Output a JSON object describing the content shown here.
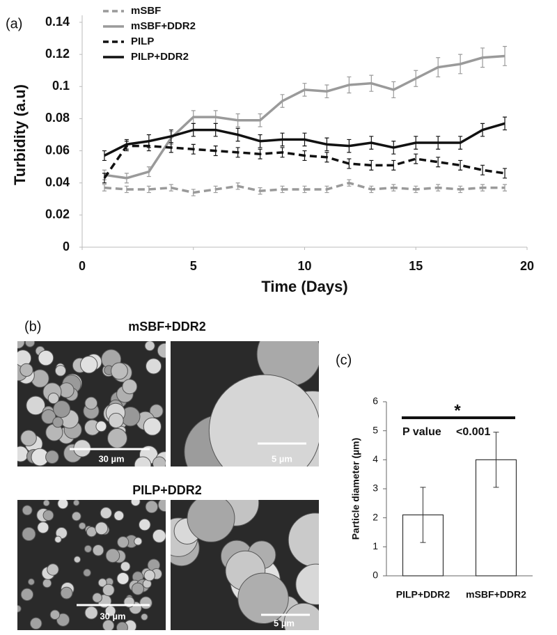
{
  "panel_labels": [
    "(a)",
    "(b)",
    "(c)"
  ],
  "micrographs": {
    "groups": [
      {
        "title": "mSBF+DDR2",
        "scale_bars": [
          "30 µm",
          "5 µm"
        ]
      },
      {
        "title": "PILP+DDR2",
        "scale_bars": [
          "30 µm",
          "5 µm"
        ]
      }
    ]
  },
  "chart_data": [
    {
      "type": "line",
      "x_label": "Time (Days)",
      "y_label": "Turbidity (a.u)",
      "x": [
        1,
        2,
        3,
        4,
        5,
        6,
        7,
        8,
        9,
        10,
        11,
        12,
        13,
        14,
        15,
        16,
        17,
        18,
        19
      ],
      "xlim": [
        0,
        20
      ],
      "xticks": [
        0,
        5,
        10,
        15,
        20
      ],
      "ylim": [
        0,
        0.14
      ],
      "yticks": [
        0,
        0.02,
        0.04,
        0.06,
        0.08,
        0.1,
        0.12,
        0.14
      ],
      "legend": "top-left",
      "series": [
        {
          "name": "mSBF",
          "color": "#9a9a9a",
          "dashed": true,
          "values": [
            0.037,
            0.036,
            0.036,
            0.037,
            0.034,
            0.036,
            0.038,
            0.035,
            0.036,
            0.036,
            0.036,
            0.04,
            0.036,
            0.037,
            0.036,
            0.037,
            0.036,
            0.037,
            0.037
          ],
          "errors": [
            0.002,
            0.002,
            0.002,
            0.002,
            0.002,
            0.002,
            0.002,
            0.002,
            0.002,
            0.002,
            0.002,
            0.002,
            0.002,
            0.002,
            0.002,
            0.002,
            0.002,
            0.002,
            0.002
          ]
        },
        {
          "name": "mSBF+DDR2",
          "color": "#9a9a9a",
          "dashed": false,
          "values": [
            0.045,
            0.043,
            0.047,
            0.068,
            0.081,
            0.081,
            0.079,
            0.079,
            0.091,
            0.098,
            0.097,
            0.101,
            0.102,
            0.098,
            0.105,
            0.112,
            0.114,
            0.118,
            0.119
          ],
          "errors": [
            0.003,
            0.003,
            0.003,
            0.004,
            0.004,
            0.004,
            0.004,
            0.004,
            0.004,
            0.004,
            0.004,
            0.005,
            0.005,
            0.005,
            0.005,
            0.006,
            0.006,
            0.006,
            0.006
          ]
        },
        {
          "name": "PILP",
          "color": "#111111",
          "dashed": true,
          "values": [
            0.043,
            0.063,
            0.063,
            0.062,
            0.061,
            0.06,
            0.059,
            0.058,
            0.059,
            0.057,
            0.056,
            0.052,
            0.051,
            0.051,
            0.055,
            0.053,
            0.051,
            0.048,
            0.046
          ],
          "errors": [
            0.003,
            0.003,
            0.003,
            0.003,
            0.003,
            0.003,
            0.003,
            0.003,
            0.003,
            0.003,
            0.003,
            0.003,
            0.003,
            0.003,
            0.003,
            0.003,
            0.003,
            0.003,
            0.003
          ]
        },
        {
          "name": "PILP+DDR2",
          "color": "#111111",
          "dashed": false,
          "values": [
            0.057,
            0.064,
            0.066,
            0.069,
            0.073,
            0.073,
            0.07,
            0.066,
            0.067,
            0.067,
            0.064,
            0.063,
            0.065,
            0.062,
            0.065,
            0.065,
            0.065,
            0.073,
            0.077
          ],
          "errors": [
            0.003,
            0.003,
            0.004,
            0.004,
            0.004,
            0.004,
            0.004,
            0.004,
            0.004,
            0.004,
            0.004,
            0.004,
            0.004,
            0.004,
            0.004,
            0.004,
            0.004,
            0.004,
            0.004
          ]
        }
      ]
    },
    {
      "type": "bar",
      "y_label": "Particle diameter (µm)",
      "categories": [
        "PILP+DDR2",
        "mSBF+DDR2"
      ],
      "values": [
        2.1,
        4.0
      ],
      "errors": [
        0.95,
        0.95
      ],
      "color": "#ffffff",
      "ylim": [
        0,
        6
      ],
      "yticks": [
        0,
        1,
        2,
        3,
        4,
        5,
        6
      ],
      "annotations": [
        "*",
        "P value",
        "<0.001"
      ]
    }
  ]
}
